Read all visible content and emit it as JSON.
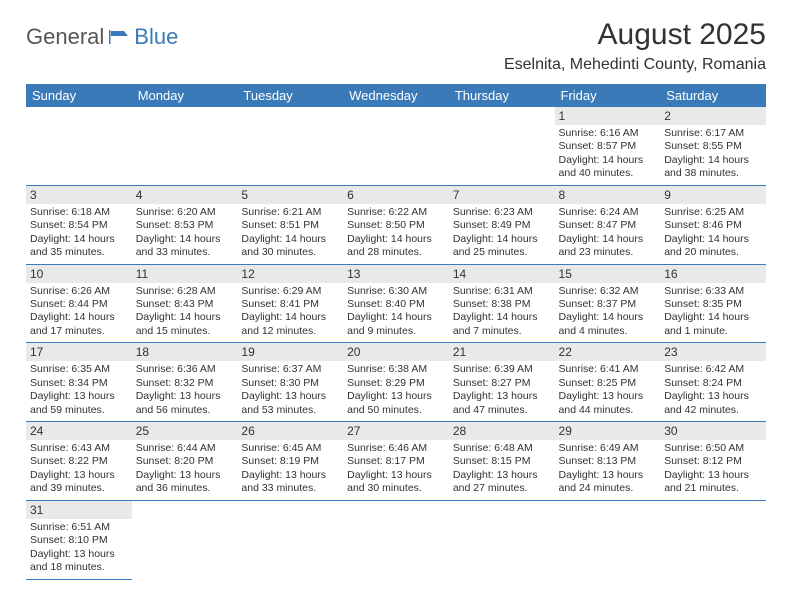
{
  "logo": {
    "text1": "General",
    "text2": "Blue"
  },
  "title": "August 2025",
  "location": "Eselnita, Mehedinti County, Romania",
  "headers": [
    "Sunday",
    "Monday",
    "Tuesday",
    "Wednesday",
    "Thursday",
    "Friday",
    "Saturday"
  ],
  "colors": {
    "header_bg": "#3a7ab8",
    "header_fg": "#ffffff",
    "daynum_bg": "#e9e9e9",
    "text": "#323232",
    "row_border": "#3a7ab8"
  },
  "fonts": {
    "title_pt": 30,
    "location_pt": 16,
    "header_pt": 13,
    "daynum_pt": 12,
    "body_pt": 10.5
  },
  "grid": {
    "rows": 6,
    "cols": 7,
    "first_day_index": 5,
    "days_in_month": 31
  },
  "days": [
    {
      "n": 1,
      "sunrise": "6:16 AM",
      "sunset": "8:57 PM",
      "daylight": "14 hours and 40 minutes."
    },
    {
      "n": 2,
      "sunrise": "6:17 AM",
      "sunset": "8:55 PM",
      "daylight": "14 hours and 38 minutes."
    },
    {
      "n": 3,
      "sunrise": "6:18 AM",
      "sunset": "8:54 PM",
      "daylight": "14 hours and 35 minutes."
    },
    {
      "n": 4,
      "sunrise": "6:20 AM",
      "sunset": "8:53 PM",
      "daylight": "14 hours and 33 minutes."
    },
    {
      "n": 5,
      "sunrise": "6:21 AM",
      "sunset": "8:51 PM",
      "daylight": "14 hours and 30 minutes."
    },
    {
      "n": 6,
      "sunrise": "6:22 AM",
      "sunset": "8:50 PM",
      "daylight": "14 hours and 28 minutes."
    },
    {
      "n": 7,
      "sunrise": "6:23 AM",
      "sunset": "8:49 PM",
      "daylight": "14 hours and 25 minutes."
    },
    {
      "n": 8,
      "sunrise": "6:24 AM",
      "sunset": "8:47 PM",
      "daylight": "14 hours and 23 minutes."
    },
    {
      "n": 9,
      "sunrise": "6:25 AM",
      "sunset": "8:46 PM",
      "daylight": "14 hours and 20 minutes."
    },
    {
      "n": 10,
      "sunrise": "6:26 AM",
      "sunset": "8:44 PM",
      "daylight": "14 hours and 17 minutes."
    },
    {
      "n": 11,
      "sunrise": "6:28 AM",
      "sunset": "8:43 PM",
      "daylight": "14 hours and 15 minutes."
    },
    {
      "n": 12,
      "sunrise": "6:29 AM",
      "sunset": "8:41 PM",
      "daylight": "14 hours and 12 minutes."
    },
    {
      "n": 13,
      "sunrise": "6:30 AM",
      "sunset": "8:40 PM",
      "daylight": "14 hours and 9 minutes."
    },
    {
      "n": 14,
      "sunrise": "6:31 AM",
      "sunset": "8:38 PM",
      "daylight": "14 hours and 7 minutes."
    },
    {
      "n": 15,
      "sunrise": "6:32 AM",
      "sunset": "8:37 PM",
      "daylight": "14 hours and 4 minutes."
    },
    {
      "n": 16,
      "sunrise": "6:33 AM",
      "sunset": "8:35 PM",
      "daylight": "14 hours and 1 minute."
    },
    {
      "n": 17,
      "sunrise": "6:35 AM",
      "sunset": "8:34 PM",
      "daylight": "13 hours and 59 minutes."
    },
    {
      "n": 18,
      "sunrise": "6:36 AM",
      "sunset": "8:32 PM",
      "daylight": "13 hours and 56 minutes."
    },
    {
      "n": 19,
      "sunrise": "6:37 AM",
      "sunset": "8:30 PM",
      "daylight": "13 hours and 53 minutes."
    },
    {
      "n": 20,
      "sunrise": "6:38 AM",
      "sunset": "8:29 PM",
      "daylight": "13 hours and 50 minutes."
    },
    {
      "n": 21,
      "sunrise": "6:39 AM",
      "sunset": "8:27 PM",
      "daylight": "13 hours and 47 minutes."
    },
    {
      "n": 22,
      "sunrise": "6:41 AM",
      "sunset": "8:25 PM",
      "daylight": "13 hours and 44 minutes."
    },
    {
      "n": 23,
      "sunrise": "6:42 AM",
      "sunset": "8:24 PM",
      "daylight": "13 hours and 42 minutes."
    },
    {
      "n": 24,
      "sunrise": "6:43 AM",
      "sunset": "8:22 PM",
      "daylight": "13 hours and 39 minutes."
    },
    {
      "n": 25,
      "sunrise": "6:44 AM",
      "sunset": "8:20 PM",
      "daylight": "13 hours and 36 minutes."
    },
    {
      "n": 26,
      "sunrise": "6:45 AM",
      "sunset": "8:19 PM",
      "daylight": "13 hours and 33 minutes."
    },
    {
      "n": 27,
      "sunrise": "6:46 AM",
      "sunset": "8:17 PM",
      "daylight": "13 hours and 30 minutes."
    },
    {
      "n": 28,
      "sunrise": "6:48 AM",
      "sunset": "8:15 PM",
      "daylight": "13 hours and 27 minutes."
    },
    {
      "n": 29,
      "sunrise": "6:49 AM",
      "sunset": "8:13 PM",
      "daylight": "13 hours and 24 minutes."
    },
    {
      "n": 30,
      "sunrise": "6:50 AM",
      "sunset": "8:12 PM",
      "daylight": "13 hours and 21 minutes."
    },
    {
      "n": 31,
      "sunrise": "6:51 AM",
      "sunset": "8:10 PM",
      "daylight": "13 hours and 18 minutes."
    }
  ],
  "labels": {
    "sunrise": "Sunrise:",
    "sunset": "Sunset:",
    "daylight": "Daylight:"
  }
}
